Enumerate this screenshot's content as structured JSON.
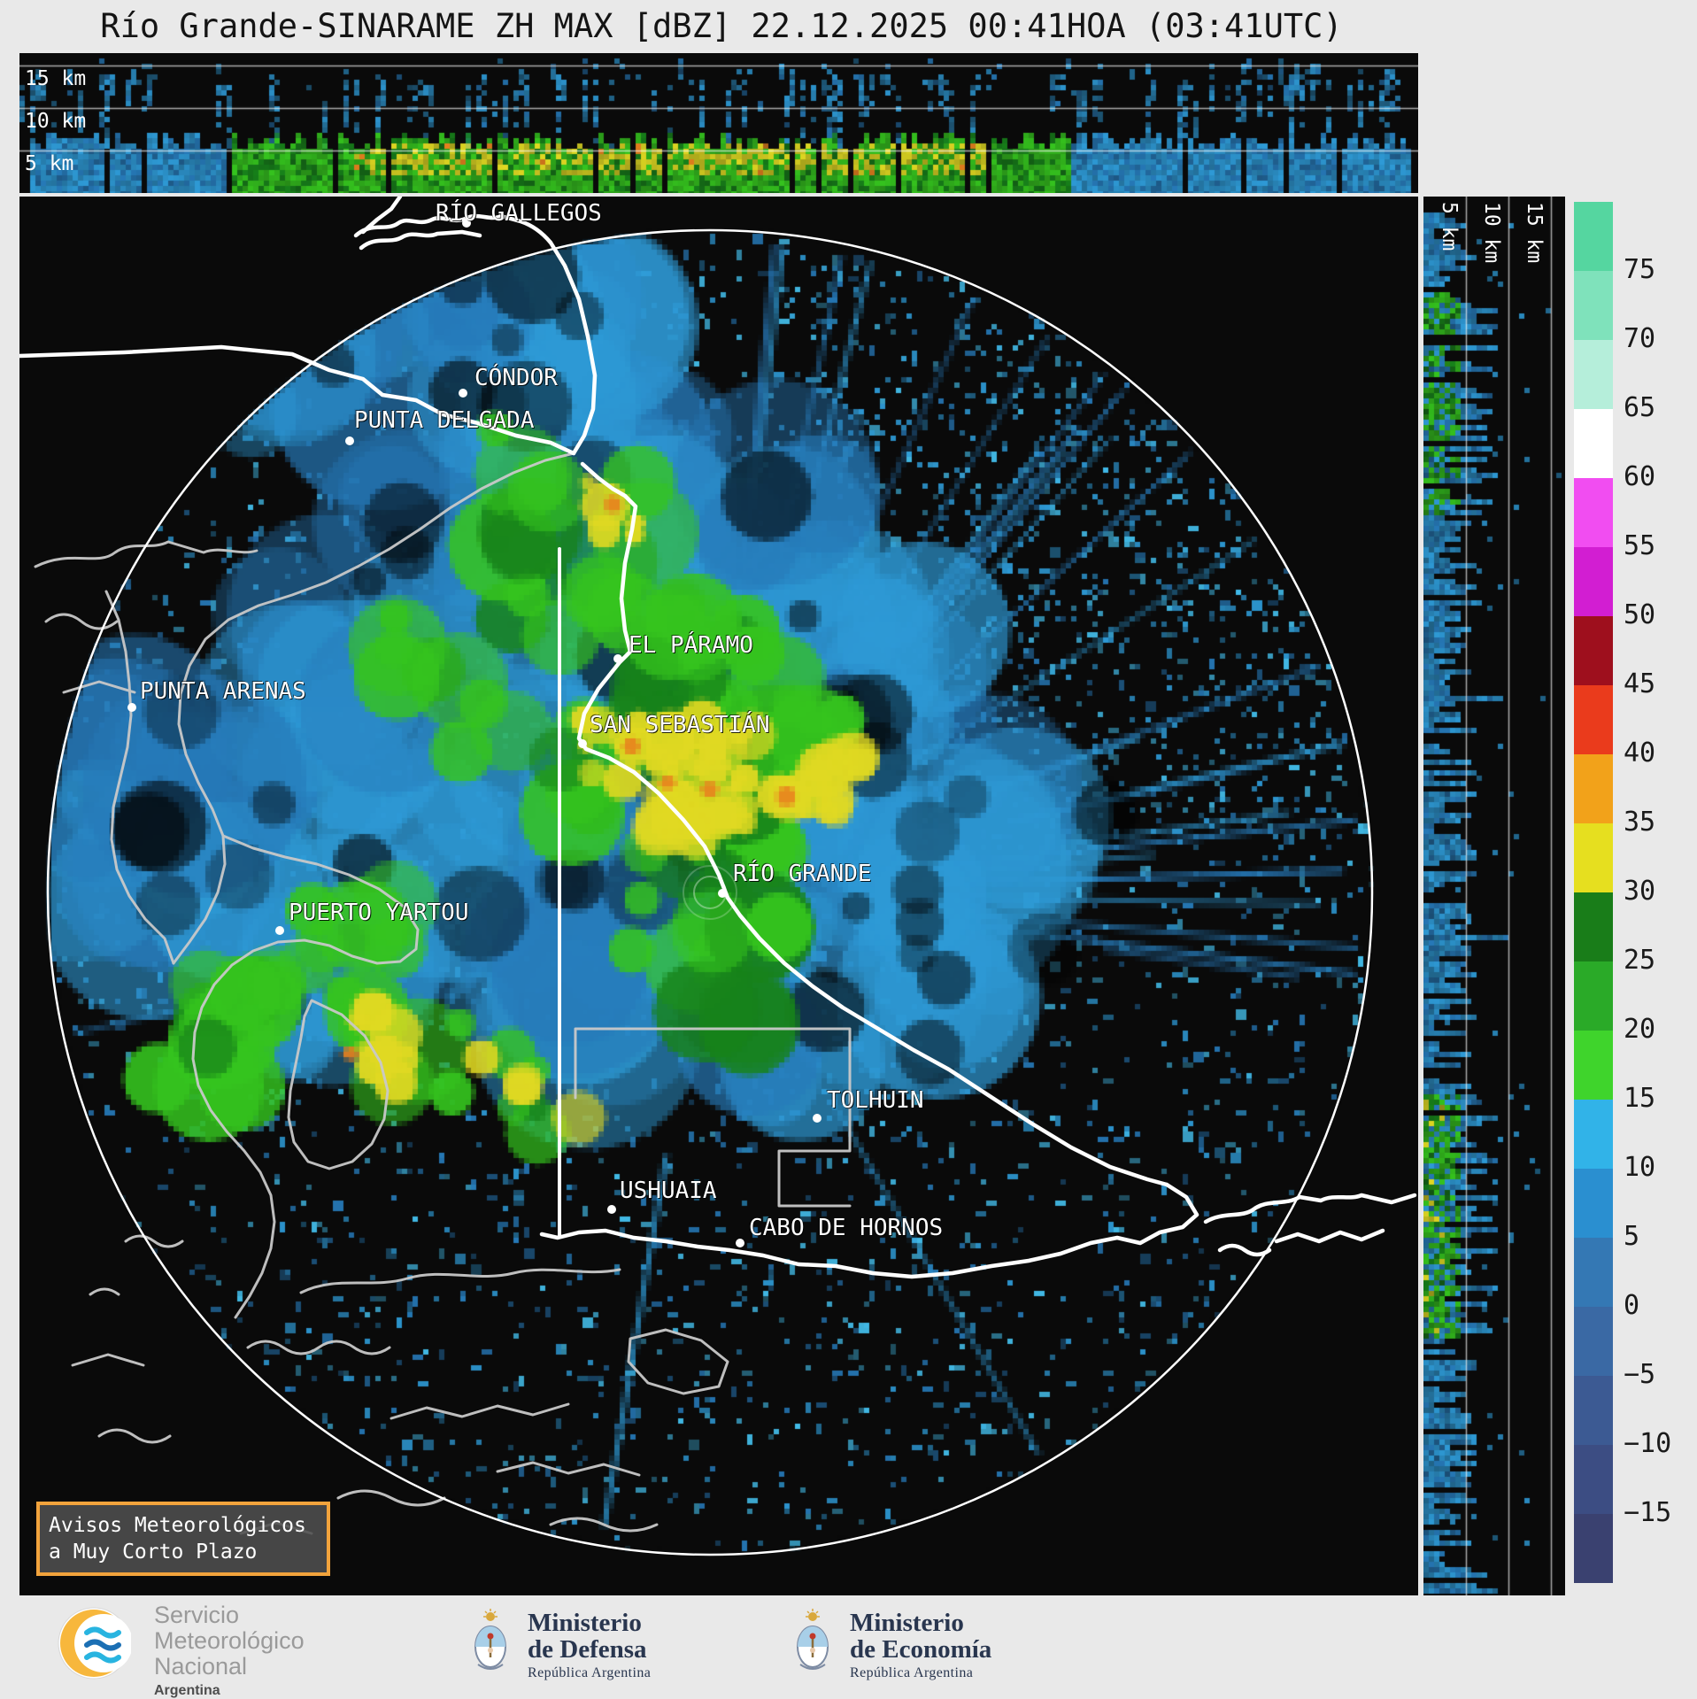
{
  "title": "Río Grande-SINARAME ZH MAX [dBZ] 22.12.2025 00:41HOA (03:41UTC)",
  "cross_sections": {
    "top_axis_labels": [
      "15 km",
      "10 km",
      "5 km"
    ],
    "right_axis_labels": [
      "5 km",
      "10 km",
      "15 km"
    ]
  },
  "map": {
    "cities": [
      {
        "name": "RÍO GALLEGOS",
        "label": [
          492,
          226
        ],
        "dot": [
          527,
          252
        ]
      },
      {
        "name": "CÓNDOR",
        "label": [
          536,
          412
        ],
        "dot": [
          523,
          444
        ]
      },
      {
        "name": "PUNTA DELGADA",
        "label": [
          400,
          460
        ],
        "dot": [
          395,
          498
        ]
      },
      {
        "name": "EL PÁRAMO",
        "label": [
          710,
          714
        ],
        "dot": [
          698,
          744
        ]
      },
      {
        "name": "PUNTA ARENAS",
        "label": [
          158,
          766
        ],
        "dot": [
          149,
          799
        ]
      },
      {
        "name": "SAN SEBASTIÁN",
        "label": [
          666,
          804
        ],
        "dot": [
          658,
          840
        ]
      },
      {
        "name": "RÍO GRANDE",
        "label": [
          828,
          972
        ],
        "dot": [
          816,
          1009
        ]
      },
      {
        "name": "PUERTO YARTOU",
        "label": [
          326,
          1016
        ],
        "dot": [
          316,
          1051
        ]
      },
      {
        "name": "TOLHUIN",
        "label": [
          934,
          1228
        ],
        "dot": [
          923,
          1263
        ]
      },
      {
        "name": "USHUAIA",
        "label": [
          700,
          1330
        ],
        "dot": [
          691,
          1366
        ]
      },
      {
        "name": "CABO DE HORNOS",
        "label": [
          846,
          1372
        ],
        "dot": [
          836,
          1404
        ]
      }
    ],
    "notice": {
      "line1": "Avisos Meteorológicos",
      "line2": "a Muy Corto Plazo"
    }
  },
  "colorbar": {
    "tick_labels": [
      "75",
      "70",
      "65",
      "60",
      "55",
      "50",
      "45",
      "40",
      "35",
      "30",
      "25",
      "20",
      "15",
      "10",
      "5",
      "0",
      "−5",
      "−10",
      "−15"
    ],
    "segments_top_to_bottom": [
      "#55d6a0",
      "#7fe2bb",
      "#b5eeda",
      "#ffffff",
      "#f14df1",
      "#d21ed2",
      "#9e0f1d",
      "#ea3b1c",
      "#f2a21a",
      "#e6df1f",
      "#197d19",
      "#2aaa28",
      "#3fd42c",
      "#31b3e8",
      "#2a8fd0",
      "#3478b4",
      "#3a69a4",
      "#3c5a93",
      "#3c4d83",
      "#3a4170"
    ]
  },
  "echo_palette": {
    "blue1": "#2e9ad6",
    "blue2": "#2679b8",
    "blue3": "#45c2f0",
    "green": "#35c41e",
    "dgreen": "#17821a",
    "yellow": "#e0d922",
    "orange": "#e8821e"
  },
  "footer": {
    "smn": {
      "line1": "Servicio",
      "line2": "Meteorológico",
      "line3": "Nacional",
      "country": "Argentina"
    },
    "defensa": {
      "line1": "Ministerio",
      "line2": "de Defensa",
      "sub": "República Argentina"
    },
    "economia": {
      "line1": "Ministerio",
      "line2": "de Economía",
      "sub": "República Argentina"
    }
  }
}
